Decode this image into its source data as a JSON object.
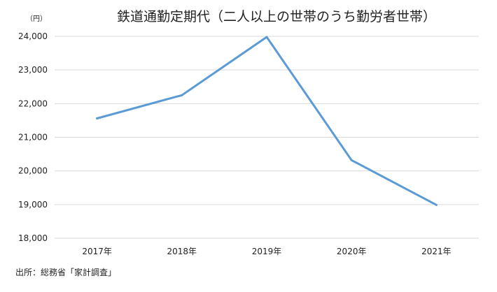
{
  "chart_data": {
    "type": "line",
    "title": "鉄道通勤定期代（二人以上の世帯のうち勤労者世帯）",
    "unit_label": "（円）",
    "xlabel": "",
    "ylabel": "",
    "categories": [
      "2017年",
      "2018年",
      "2019年",
      "2020年",
      "2021年"
    ],
    "series": [
      {
        "values": [
          21560,
          22250,
          23980,
          20320,
          18990
        ],
        "color": "#5b9bd5"
      }
    ],
    "ylim": [
      18000,
      24000
    ],
    "y_ticks": [
      18000,
      19000,
      20000,
      21000,
      22000,
      23000,
      24000
    ],
    "y_tick_labels": [
      "18,000",
      "19,000",
      "20,000",
      "21,000",
      "22,000",
      "23,000",
      "24,000"
    ],
    "grid": true,
    "grid_color": "#d9d9d9",
    "legend": "none"
  },
  "source_note": "出所：総務省「家計調査」"
}
